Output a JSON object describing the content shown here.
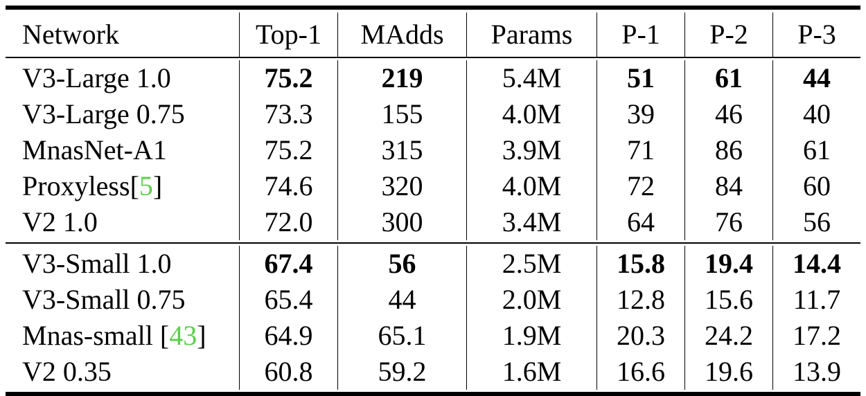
{
  "header": [
    "Network",
    "Top-1",
    "MAdds",
    "Params",
    "P-1",
    "P-2",
    "P-3"
  ],
  "group1": [
    {
      "name": "V3-Large 1.0",
      "cite": "",
      "suffix": "",
      "cells": [
        "75.2",
        "219",
        "5.4M",
        "51",
        "61",
        "44"
      ],
      "bold": [
        true,
        true,
        false,
        true,
        true,
        true
      ]
    },
    {
      "name": "V3-Large 0.75",
      "cite": "",
      "suffix": "",
      "cells": [
        "73.3",
        "155",
        "4.0M",
        "39",
        "46",
        "40"
      ],
      "bold": [
        false,
        false,
        false,
        false,
        false,
        false
      ]
    },
    {
      "name": "MnasNet-A1",
      "cite": "",
      "suffix": "",
      "cells": [
        "75.2",
        "315",
        "3.9M",
        "71",
        "86",
        "61"
      ],
      "bold": [
        false,
        false,
        false,
        false,
        false,
        false
      ]
    },
    {
      "name": "Proxyless[",
      "cite": "5",
      "suffix": "]",
      "cells": [
        "74.6",
        "320",
        "4.0M",
        "72",
        "84",
        "60"
      ],
      "bold": [
        false,
        false,
        false,
        false,
        false,
        false
      ]
    },
    {
      "name": "V2 1.0",
      "cite": "",
      "suffix": "",
      "cells": [
        "72.0",
        "300",
        "3.4M",
        "64",
        "76",
        "56"
      ],
      "bold": [
        false,
        false,
        false,
        false,
        false,
        false
      ]
    }
  ],
  "group2": [
    {
      "name": "V3-Small 1.0",
      "cite": "",
      "suffix": "",
      "cells": [
        "67.4",
        "56",
        "2.5M",
        "15.8",
        "19.4",
        "14.4"
      ],
      "bold": [
        true,
        true,
        false,
        true,
        true,
        true
      ]
    },
    {
      "name": "V3-Small 0.75",
      "cite": "",
      "suffix": "",
      "cells": [
        "65.4",
        "44",
        "2.0M",
        "12.8",
        "15.6",
        "11.7"
      ],
      "bold": [
        false,
        false,
        false,
        false,
        false,
        false
      ]
    },
    {
      "name": "Mnas-small [",
      "cite": "43",
      "suffix": "]",
      "cells": [
        "64.9",
        "65.1",
        "1.9M",
        "20.3",
        "24.2",
        "17.2"
      ],
      "bold": [
        false,
        false,
        false,
        false,
        false,
        false
      ]
    },
    {
      "name": "V2 0.35",
      "cite": "",
      "suffix": "",
      "cells": [
        "60.8",
        "59.2",
        "1.6M",
        "16.6",
        "19.6",
        "13.9"
      ],
      "bold": [
        false,
        false,
        false,
        false,
        false,
        false
      ]
    }
  ],
  "colors": {
    "citation": "#5ad04a",
    "rule": "#000000"
  }
}
